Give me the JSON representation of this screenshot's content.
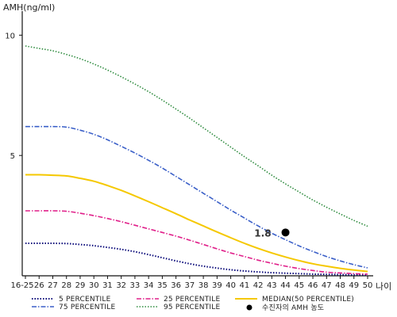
{
  "chart_data": {
    "type": "line",
    "ylabel": "AMH(ng/ml)",
    "xlabel": "나이",
    "y_ticks": [
      5,
      10
    ],
    "ylim": [
      0,
      11
    ],
    "x_categories": [
      "16-25",
      "26",
      "27",
      "28",
      "29",
      "30",
      "31",
      "32",
      "33",
      "34",
      "35",
      "36",
      "37",
      "38",
      "39",
      "40",
      "41",
      "42",
      "43",
      "44",
      "45",
      "46",
      "47",
      "48",
      "49",
      "50"
    ],
    "grid": false,
    "series": [
      {
        "name": "5 PERCENTILE",
        "color": "#0a0a7a",
        "dash": "1.5,2",
        "width": 2,
        "values": [
          1.35,
          1.35,
          1.35,
          1.34,
          1.3,
          1.25,
          1.18,
          1.1,
          1.0,
          0.88,
          0.75,
          0.62,
          0.5,
          0.4,
          0.32,
          0.25,
          0.2,
          0.16,
          0.13,
          0.11,
          0.09,
          0.07,
          0.06,
          0.05,
          0.04,
          0.04
        ]
      },
      {
        "name": "25 PERCENTILE",
        "color": "#e0208a",
        "dash": "6,2,1.5,2",
        "width": 1.6,
        "values": [
          2.7,
          2.7,
          2.7,
          2.68,
          2.6,
          2.5,
          2.38,
          2.25,
          2.1,
          1.95,
          1.8,
          1.65,
          1.48,
          1.3,
          1.12,
          0.95,
          0.8,
          0.65,
          0.52,
          0.4,
          0.3,
          0.22,
          0.15,
          0.12,
          0.09,
          0.07
        ]
      },
      {
        "name": "MEDIAN(50 PERCENTILE)",
        "color": "#f5c800",
        "dash": "",
        "width": 2,
        "values": [
          4.2,
          4.2,
          4.18,
          4.15,
          4.05,
          3.93,
          3.75,
          3.55,
          3.32,
          3.08,
          2.83,
          2.58,
          2.32,
          2.07,
          1.82,
          1.58,
          1.35,
          1.14,
          0.95,
          0.78,
          0.63,
          0.5,
          0.4,
          0.31,
          0.24,
          0.18
        ]
      },
      {
        "name": "75 PERCENTILE",
        "color": "#3a5fc8",
        "dash": "6,2,1.5,2",
        "width": 1.6,
        "values": [
          6.2,
          6.2,
          6.2,
          6.18,
          6.05,
          5.88,
          5.65,
          5.38,
          5.1,
          4.8,
          4.48,
          4.13,
          3.78,
          3.43,
          3.08,
          2.73,
          2.4,
          2.07,
          1.77,
          1.5,
          1.24,
          1.01,
          0.8,
          0.62,
          0.46,
          0.33
        ]
      },
      {
        "name": "95 PERCENTILE",
        "color": "#2e8b3e",
        "dash": "1.5,2",
        "width": 1.6,
        "values": [
          9.55,
          9.45,
          9.35,
          9.2,
          9.02,
          8.8,
          8.55,
          8.27,
          7.97,
          7.65,
          7.3,
          6.93,
          6.55,
          6.15,
          5.75,
          5.35,
          4.95,
          4.57,
          4.18,
          3.82,
          3.48,
          3.15,
          2.85,
          2.57,
          2.3,
          2.06
        ]
      }
    ],
    "point": {
      "legend_label": "수진자의 AMH 농도",
      "x": "44",
      "y": 1.8,
      "label": "1.8",
      "color": "#000000"
    },
    "legend": {
      "position": "bottom"
    }
  }
}
